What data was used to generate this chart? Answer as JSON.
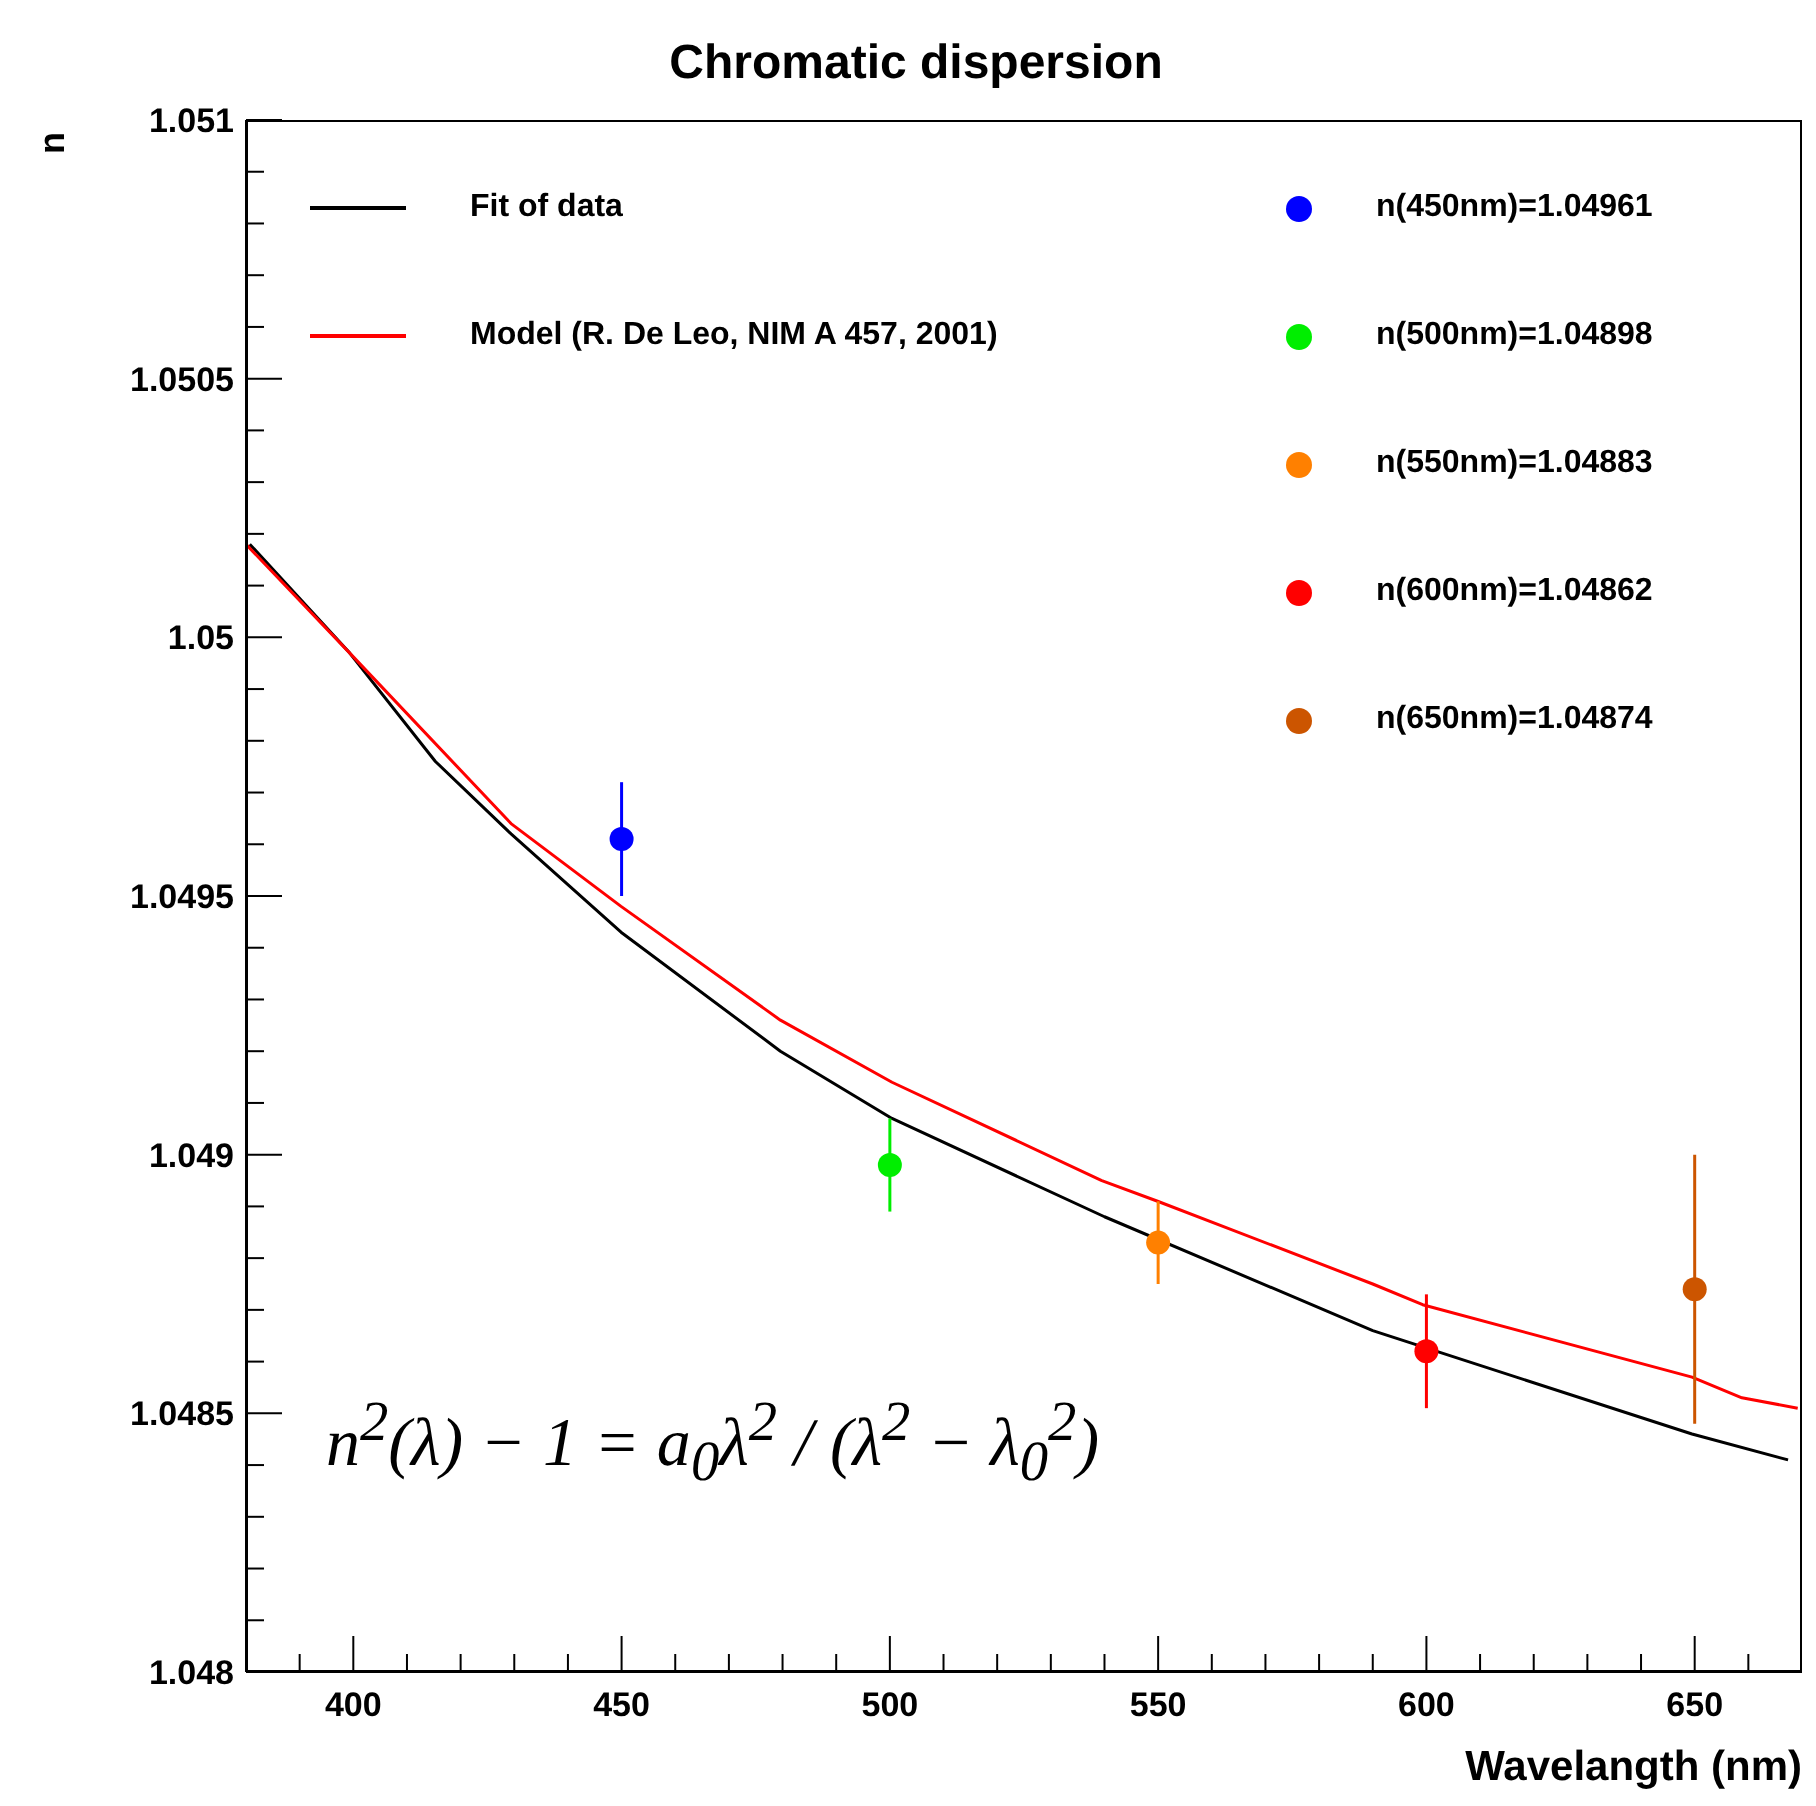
{
  "chart_data": {
    "type": "scatter",
    "title": "Chromatic dispersion",
    "xlabel": "Wavelangth (nm)",
    "ylabel": "n",
    "xlim": [
      380,
      670
    ],
    "ylim": [
      1.048,
      1.051
    ],
    "xticks": [
      {
        "value": 390,
        "label": null
      },
      400,
      {
        "value": 410,
        "label": null
      },
      {
        "value": 420,
        "label": null
      },
      {
        "value": 430,
        "label": null
      },
      {
        "value": 440,
        "label": null
      },
      450,
      {
        "value": 460,
        "label": null
      },
      {
        "value": 470,
        "label": null
      },
      {
        "value": 480,
        "label": null
      },
      {
        "value": 490,
        "label": null
      },
      500,
      {
        "value": 510,
        "label": null
      },
      {
        "value": 520,
        "label": null
      },
      {
        "value": 530,
        "label": null
      },
      {
        "value": 540,
        "label": null
      },
      550,
      {
        "value": 560,
        "label": null
      },
      {
        "value": 570,
        "label": null
      },
      {
        "value": 580,
        "label": null
      },
      {
        "value": 590,
        "label": null
      },
      600,
      {
        "value": 610,
        "label": null
      },
      {
        "value": 620,
        "label": null
      },
      {
        "value": 630,
        "label": null
      },
      {
        "value": 640,
        "label": null
      },
      650,
      {
        "value": 660,
        "label": null
      }
    ],
    "yticks": [
      1.048,
      {
        "value": 1.0481,
        "label": null
      },
      {
        "value": 1.0482,
        "label": null
      },
      {
        "value": 1.0483,
        "label": null
      },
      {
        "value": 1.0484,
        "label": null
      },
      1.0485,
      {
        "value": 1.0486,
        "label": null
      },
      {
        "value": 1.0487,
        "label": null
      },
      {
        "value": 1.0488,
        "label": null
      },
      {
        "value": 1.0489,
        "label": null
      },
      1.049,
      {
        "value": 1.0491,
        "label": null
      },
      {
        "value": 1.0492,
        "label": null
      },
      {
        "value": 1.0493,
        "label": null
      },
      {
        "value": 1.0494,
        "label": null
      },
      1.0495,
      {
        "value": 1.0496,
        "label": null
      },
      {
        "value": 1.0497,
        "label": null
      },
      {
        "value": 1.0498,
        "label": null
      },
      {
        "value": 1.0499,
        "label": null
      },
      1.05,
      {
        "value": 1.0501,
        "label": null
      },
      {
        "value": 1.0502,
        "label": null
      },
      {
        "value": 1.0503,
        "label": null
      },
      {
        "value": 1.0504,
        "label": null
      },
      1.0505,
      {
        "value": 1.0506,
        "label": null
      },
      {
        "value": 1.0507,
        "label": null
      },
      {
        "value": 1.0508,
        "label": null
      },
      {
        "value": 1.0509,
        "label": null
      },
      1.051
    ],
    "legend": "top",
    "annotations": [
      "n$^{2}$(λ) − 1 = a$_{0}$λ$^{2}$ / (λ$^{2}$ − λ$_{0}$$^{2}$)"
    ],
    "series": [
      {
        "name": "Fit of data",
        "type": "line",
        "marker": "none",
        "color": "#000000",
        "x": [
          380.7,
          399.3,
          415.3,
          429.4,
          449.9,
          479.6,
          500.4,
          540,
          590,
          649.5,
          667.4
        ],
        "values": [
          1.05018,
          1.04997,
          1.04976,
          1.04962,
          1.04943,
          1.0492,
          1.04907,
          1.04888,
          1.04866,
          1.04846,
          1.04841
        ]
      },
      {
        "name": "Model (R. De Leo, NIM A 457, 2001)",
        "type": "line",
        "marker": "none",
        "color": "#ff0000",
        "x": [
          380,
          399.3,
          429.4,
          449.9,
          479.6,
          500.4,
          539.5,
          549.9,
          590,
          599.3,
          649.5,
          658.8,
          669.2
        ],
        "values": [
          1.05018,
          1.04997,
          1.04964,
          1.04948,
          1.04926,
          1.04914,
          1.04895,
          1.04891,
          1.04875,
          1.04871,
          1.04857,
          1.04853,
          1.04851
        ]
      },
      {
        "name": "n(450nm)=1.04961",
        "marker": "circle",
        "color": "#0000ff",
        "x": [
          450
        ],
        "values": [
          1.04961
        ],
        "errors": [
          0.00011
        ]
      },
      {
        "name": "n(500nm)=1.04898",
        "marker": "circle",
        "color": "#00ee00",
        "x": [
          500
        ],
        "values": [
          1.04898
        ],
        "errors": [
          9e-05
        ]
      },
      {
        "name": "n(550nm)=1.04883",
        "marker": "circle",
        "color": "#ff8000",
        "x": [
          550
        ],
        "values": [
          1.04883
        ],
        "errors": [
          8e-05
        ]
      },
      {
        "name": "n(600nm)=1.04862",
        "marker": "circle",
        "color": "#ff0000",
        "x": [
          600
        ],
        "values": [
          1.04862
        ],
        "errors": [
          0.00011
        ]
      },
      {
        "name": "n(650nm)=1.04874",
        "marker": "circle",
        "color": "#cc5500",
        "x": [
          650
        ],
        "values": [
          1.04874
        ],
        "errors": [
          0.00026
        ]
      }
    ]
  }
}
